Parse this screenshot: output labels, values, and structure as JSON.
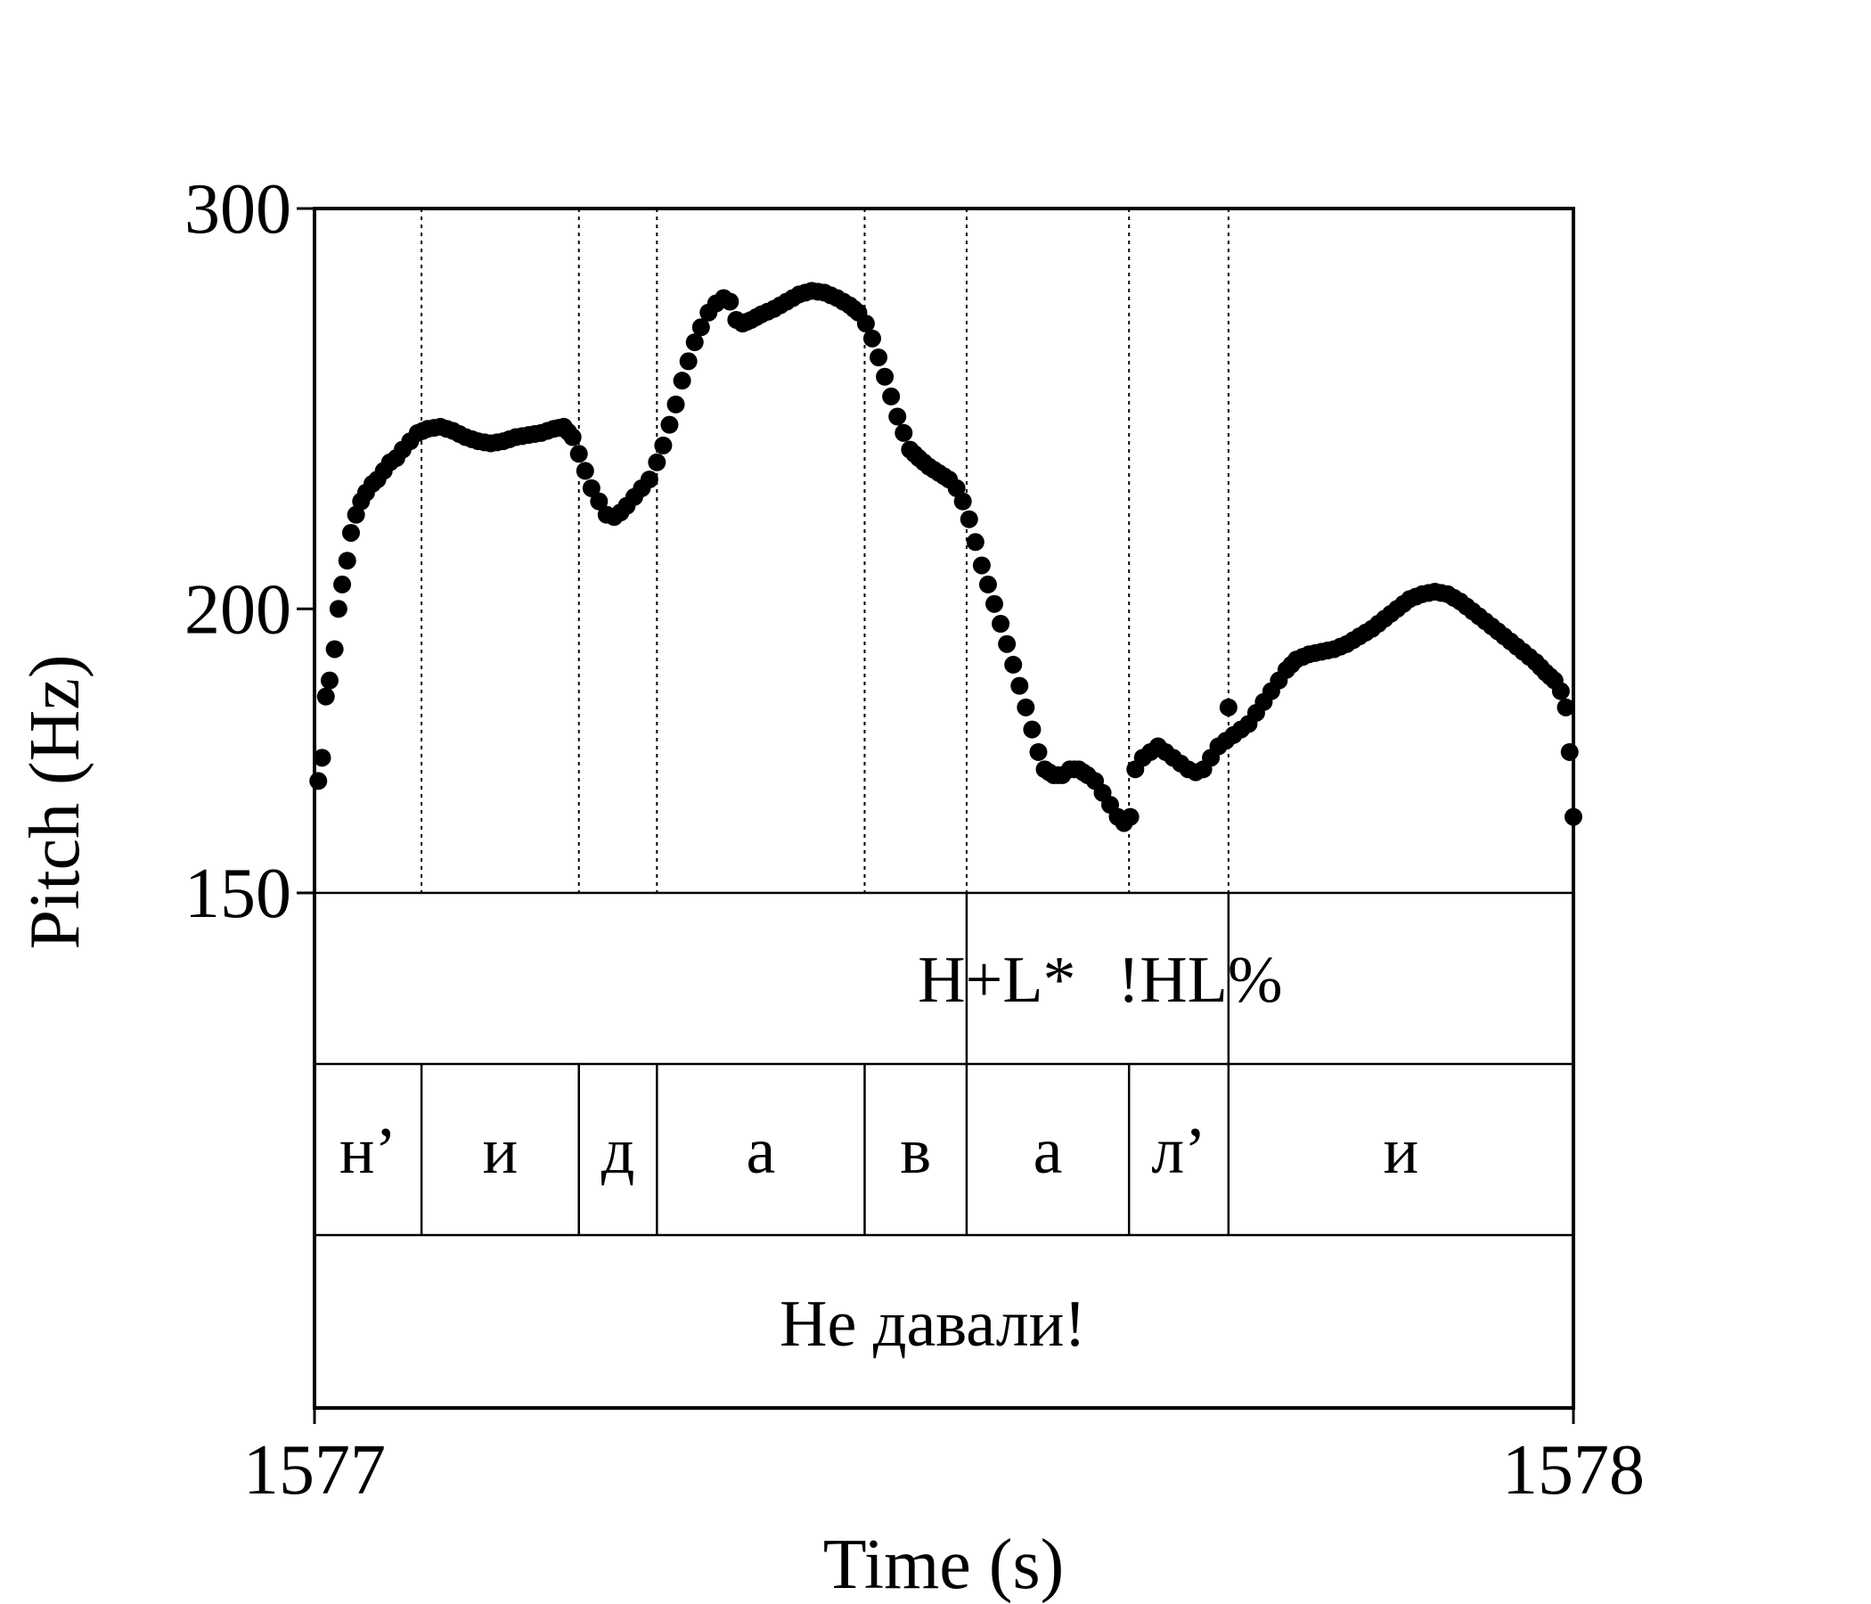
{
  "chart_data": {
    "type": "scatter",
    "xlabel": "Time (s)",
    "ylabel": "Pitch (Hz)",
    "x_ticks": [
      "1577",
      "1578"
    ],
    "y_ticks": [
      "150",
      "200",
      "300"
    ],
    "xlim": [
      1577,
      1578
    ],
    "ylim": [
      150,
      300
    ],
    "y_scale": "log",
    "grid": false,
    "point_color": "#000000",
    "boundaries": [
      1577.085,
      1577.21,
      1577.272,
      1577.437,
      1577.518,
      1577.647,
      1577.726
    ],
    "tiers": [
      {
        "name": "tones",
        "labels": [
          {
            "text": "H+L*"
          },
          {
            "text": "!HL%"
          }
        ]
      },
      {
        "name": "segments",
        "labels": [
          {
            "text": "н’"
          },
          {
            "text": "и"
          },
          {
            "text": "д"
          },
          {
            "text": "а"
          },
          {
            "text": "в"
          },
          {
            "text": "а"
          },
          {
            "text": "л’"
          },
          {
            "text": "и"
          }
        ]
      },
      {
        "name": "words",
        "labels": [
          {
            "text": "Не давали!"
          }
        ]
      }
    ],
    "series": [
      {
        "points": [
          [
            1577.003,
            168
          ],
          [
            1577.006,
            172
          ],
          [
            1577.009,
            183
          ],
          [
            1577.012,
            186
          ],
          [
            1577.016,
            192
          ],
          [
            1577.019,
            200
          ],
          [
            1577.022,
            205
          ],
          [
            1577.026,
            210
          ],
          [
            1577.029,
            216
          ],
          [
            1577.033,
            220
          ],
          [
            1577.037,
            223
          ],
          [
            1577.041,
            225
          ],
          [
            1577.046,
            227
          ],
          [
            1577.05,
            228
          ],
          [
            1577.055,
            230
          ],
          [
            1577.06,
            232
          ],
          [
            1577.065,
            233
          ],
          [
            1577.07,
            235
          ],
          [
            1577.076,
            237
          ],
          [
            1577.082,
            239
          ],
          [
            1577.09,
            240
          ],
          [
            1577.1,
            240.5
          ],
          [
            1577.11,
            239.5
          ],
          [
            1577.12,
            238
          ],
          [
            1577.13,
            237
          ],
          [
            1577.14,
            236.5
          ],
          [
            1577.15,
            237
          ],
          [
            1577.16,
            238
          ],
          [
            1577.17,
            238.5
          ],
          [
            1577.18,
            239
          ],
          [
            1577.19,
            240
          ],
          [
            1577.198,
            240.5
          ],
          [
            1577.205,
            238
          ],
          [
            1577.21,
            234
          ],
          [
            1577.215,
            230
          ],
          [
            1577.22,
            226
          ],
          [
            1577.226,
            223
          ],
          [
            1577.232,
            220
          ],
          [
            1577.238,
            219.5
          ],
          [
            1577.243,
            220.5
          ],
          [
            1577.248,
            222
          ],
          [
            1577.254,
            224
          ],
          [
            1577.26,
            226
          ],
          [
            1577.266,
            228
          ],
          [
            1577.272,
            232
          ],
          [
            1577.277,
            236
          ],
          [
            1577.282,
            241
          ],
          [
            1577.287,
            246
          ],
          [
            1577.292,
            252
          ],
          [
            1577.297,
            257
          ],
          [
            1577.302,
            262
          ],
          [
            1577.307,
            266
          ],
          [
            1577.313,
            270
          ],
          [
            1577.319,
            272.5
          ],
          [
            1577.325,
            274
          ],
          [
            1577.33,
            273
          ],
          [
            1577.335,
            268
          ],
          [
            1577.34,
            267
          ],
          [
            1577.347,
            268
          ],
          [
            1577.355,
            269.5
          ],
          [
            1577.365,
            271
          ],
          [
            1577.375,
            273
          ],
          [
            1577.385,
            275
          ],
          [
            1577.395,
            276
          ],
          [
            1577.405,
            275.5
          ],
          [
            1577.415,
            274
          ],
          [
            1577.425,
            272
          ],
          [
            1577.432,
            270
          ],
          [
            1577.438,
            267
          ],
          [
            1577.443,
            263
          ],
          [
            1577.448,
            258
          ],
          [
            1577.453,
            253
          ],
          [
            1577.458,
            248
          ],
          [
            1577.463,
            243
          ],
          [
            1577.468,
            239
          ],
          [
            1577.473,
            235
          ],
          [
            1577.48,
            233
          ],
          [
            1577.488,
            231
          ],
          [
            1577.496,
            229.5
          ],
          [
            1577.504,
            228
          ],
          [
            1577.51,
            226
          ],
          [
            1577.515,
            223
          ],
          [
            1577.52,
            219
          ],
          [
            1577.525,
            214
          ],
          [
            1577.53,
            209
          ],
          [
            1577.535,
            205
          ],
          [
            1577.54,
            201
          ],
          [
            1577.545,
            197
          ],
          [
            1577.55,
            193
          ],
          [
            1577.555,
            189
          ],
          [
            1577.56,
            185
          ],
          [
            1577.565,
            181
          ],
          [
            1577.57,
            177
          ],
          [
            1577.575,
            173
          ],
          [
            1577.58,
            170
          ],
          [
            1577.587,
            169
          ],
          [
            1577.594,
            169
          ],
          [
            1577.6,
            170
          ],
          [
            1577.607,
            170
          ],
          [
            1577.614,
            169
          ],
          [
            1577.62,
            168
          ],
          [
            1577.626,
            166
          ],
          [
            1577.632,
            164
          ],
          [
            1577.638,
            162
          ],
          [
            1577.643,
            161
          ],
          [
            1577.648,
            162
          ],
          [
            1577.652,
            170
          ],
          [
            1577.658,
            172
          ],
          [
            1577.664,
            173
          ],
          [
            1577.67,
            174
          ],
          [
            1577.676,
            173
          ],
          [
            1577.682,
            172
          ],
          [
            1577.688,
            171
          ],
          [
            1577.694,
            170
          ],
          [
            1577.7,
            169.5
          ],
          [
            1577.706,
            170
          ],
          [
            1577.712,
            172
          ],
          [
            1577.718,
            174
          ],
          [
            1577.724,
            175
          ],
          [
            1577.726,
            181
          ],
          [
            1577.73,
            176
          ],
          [
            1577.736,
            177
          ],
          [
            1577.742,
            178
          ],
          [
            1577.748,
            180
          ],
          [
            1577.754,
            182
          ],
          [
            1577.76,
            184
          ],
          [
            1577.766,
            186
          ],
          [
            1577.772,
            188
          ],
          [
            1577.78,
            190
          ],
          [
            1577.79,
            191
          ],
          [
            1577.8,
            191.5
          ],
          [
            1577.81,
            192
          ],
          [
            1577.82,
            193
          ],
          [
            1577.83,
            194.5
          ],
          [
            1577.84,
            196
          ],
          [
            1577.85,
            198
          ],
          [
            1577.86,
            200
          ],
          [
            1577.87,
            202
          ],
          [
            1577.88,
            203
          ],
          [
            1577.89,
            203.5
          ],
          [
            1577.9,
            203
          ],
          [
            1577.91,
            201.5
          ],
          [
            1577.92,
            199.5
          ],
          [
            1577.93,
            197.5
          ],
          [
            1577.94,
            195.5
          ],
          [
            1577.95,
            193.5
          ],
          [
            1577.96,
            191.5
          ],
          [
            1577.97,
            189.5
          ],
          [
            1577.978,
            187.5
          ],
          [
            1577.985,
            186
          ],
          [
            1577.99,
            184
          ],
          [
            1577.994,
            181
          ],
          [
            1577.997,
            173
          ],
          [
            1578.0,
            162
          ]
        ]
      }
    ]
  }
}
